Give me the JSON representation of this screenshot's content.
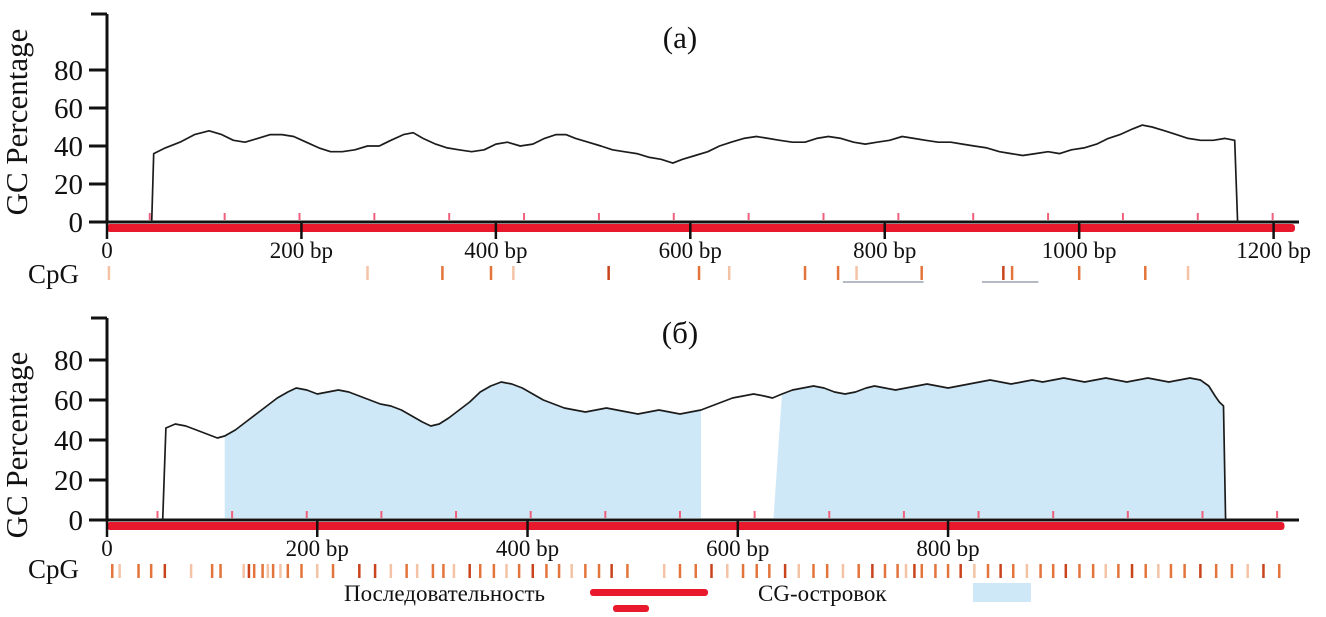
{
  "chart_data": [
    {
      "type": "line",
      "title": "(а)",
      "ylabel": "GC Percentage",
      "xlabel_unit": "bp",
      "ylim": [
        0,
        100
      ],
      "yticks": [
        0,
        20,
        40,
        60,
        80
      ],
      "xlim": [
        0,
        1222
      ],
      "xticks": [
        {
          "bp": 0,
          "label": "0"
        },
        {
          "bp": 200,
          "label": "200 bp"
        },
        {
          "bp": 400,
          "label": "400 bp"
        },
        {
          "bp": 600,
          "label": "600 bp"
        },
        {
          "bp": 800,
          "label": "800 bp"
        },
        {
          "bp": 1000,
          "label": "1000 bp"
        },
        {
          "bp": 1200,
          "label": "1200 bp"
        }
      ],
      "series": [
        {
          "name": "GC percentage",
          "points": [
            [
              46,
              0
            ],
            [
              48,
              36
            ],
            [
              60,
              39
            ],
            [
              75,
              42
            ],
            [
              90,
              46
            ],
            [
              105,
              48
            ],
            [
              118,
              46
            ],
            [
              130,
              43
            ],
            [
              142,
              42
            ],
            [
              155,
              44
            ],
            [
              168,
              46
            ],
            [
              180,
              46
            ],
            [
              192,
              45
            ],
            [
              205,
              42
            ],
            [
              218,
              39
            ],
            [
              230,
              37
            ],
            [
              242,
              37
            ],
            [
              255,
              38
            ],
            [
              268,
              40
            ],
            [
              280,
              40
            ],
            [
              292,
              43
            ],
            [
              305,
              46
            ],
            [
              315,
              47
            ],
            [
              325,
              44
            ],
            [
              338,
              41
            ],
            [
              350,
              39
            ],
            [
              362,
              38
            ],
            [
              375,
              37
            ],
            [
              388,
              38
            ],
            [
              400,
              41
            ],
            [
              412,
              42
            ],
            [
              425,
              40
            ],
            [
              438,
              41
            ],
            [
              450,
              44
            ],
            [
              462,
              46
            ],
            [
              472,
              46
            ],
            [
              482,
              44
            ],
            [
              495,
              42
            ],
            [
              508,
              40
            ],
            [
              520,
              38
            ],
            [
              532,
              37
            ],
            [
              545,
              36
            ],
            [
              558,
              34
            ],
            [
              570,
              33
            ],
            [
              582,
              31
            ],
            [
              592,
              33
            ],
            [
              605,
              35
            ],
            [
              618,
              37
            ],
            [
              630,
              40
            ],
            [
              642,
              42
            ],
            [
              655,
              44
            ],
            [
              668,
              45
            ],
            [
              680,
              44
            ],
            [
              692,
              43
            ],
            [
              705,
              42
            ],
            [
              718,
              42
            ],
            [
              730,
              44
            ],
            [
              742,
              45
            ],
            [
              755,
              44
            ],
            [
              768,
              42
            ],
            [
              780,
              41
            ],
            [
              792,
              42
            ],
            [
              805,
              43
            ],
            [
              818,
              45
            ],
            [
              830,
              44
            ],
            [
              842,
              43
            ],
            [
              855,
              42
            ],
            [
              868,
              42
            ],
            [
              880,
              41
            ],
            [
              892,
              40
            ],
            [
              905,
              39
            ],
            [
              918,
              37
            ],
            [
              930,
              36
            ],
            [
              942,
              35
            ],
            [
              955,
              36
            ],
            [
              968,
              37
            ],
            [
              980,
              36
            ],
            [
              992,
              38
            ],
            [
              1005,
              39
            ],
            [
              1018,
              41
            ],
            [
              1030,
              44
            ],
            [
              1042,
              46
            ],
            [
              1055,
              49
            ],
            [
              1065,
              51
            ],
            [
              1075,
              50
            ],
            [
              1088,
              48
            ],
            [
              1100,
              46
            ],
            [
              1112,
              44
            ],
            [
              1125,
              43
            ],
            [
              1138,
              43
            ],
            [
              1150,
              44
            ],
            [
              1160,
              43
            ],
            [
              1163,
              0
            ]
          ]
        }
      ],
      "sequence_bar_bp": [
        0,
        1222
      ],
      "islands_bp": [],
      "minor_ticks_bp": [
        44,
        121,
        198,
        275,
        352,
        429,
        506,
        583,
        660,
        737,
        814,
        891,
        968,
        1045,
        1122,
        1199
      ],
      "cpg_label": "CpG",
      "cpg_tick_bp": [
        2,
        268,
        345,
        395,
        418,
        516,
        609,
        640,
        718,
        752,
        771,
        838,
        922,
        931,
        1000,
        1068,
        1112
      ],
      "cpg_tick_tones": "llmmldmlmmlmdmmml",
      "cpg_underlines_bp": [
        [
          757,
          840
        ],
        [
          900,
          958
        ]
      ]
    },
    {
      "type": "line",
      "title": "(б)",
      "ylabel": "GC Percentage",
      "xlabel_unit": "bp",
      "ylim": [
        0,
        100
      ],
      "yticks": [
        0,
        20,
        40,
        60,
        80
      ],
      "xlim": [
        0,
        1130
      ],
      "xticks": [
        {
          "bp": 0,
          "label": "0"
        },
        {
          "bp": 200,
          "label": "200 bp"
        },
        {
          "bp": 400,
          "label": "400 bp"
        },
        {
          "bp": 600,
          "label": "600 bp"
        },
        {
          "bp": 800,
          "label": "800 bp"
        }
      ],
      "series": [
        {
          "name": "GC percentage",
          "points": [
            [
              53,
              0
            ],
            [
              56,
              46
            ],
            [
              65,
              48
            ],
            [
              75,
              47
            ],
            [
              85,
              45
            ],
            [
              95,
              43
            ],
            [
              105,
              41
            ],
            [
              112,
              42
            ],
            [
              122,
              45
            ],
            [
              132,
              49
            ],
            [
              142,
              53
            ],
            [
              152,
              57
            ],
            [
              162,
              61
            ],
            [
              172,
              64
            ],
            [
              180,
              66
            ],
            [
              190,
              65
            ],
            [
              200,
              63
            ],
            [
              210,
              64
            ],
            [
              220,
              65
            ],
            [
              230,
              64
            ],
            [
              240,
              62
            ],
            [
              250,
              60
            ],
            [
              260,
              58
            ],
            [
              270,
              57
            ],
            [
              280,
              55
            ],
            [
              290,
              52
            ],
            [
              300,
              49
            ],
            [
              308,
              47
            ],
            [
              316,
              48
            ],
            [
              325,
              51
            ],
            [
              335,
              55
            ],
            [
              345,
              59
            ],
            [
              355,
              64
            ],
            [
              365,
              67
            ],
            [
              375,
              69
            ],
            [
              385,
              68
            ],
            [
              395,
              66
            ],
            [
              405,
              63
            ],
            [
              415,
              60
            ],
            [
              425,
              58
            ],
            [
              435,
              56
            ],
            [
              445,
              55
            ],
            [
              455,
              54
            ],
            [
              465,
              55
            ],
            [
              475,
              56
            ],
            [
              485,
              55
            ],
            [
              495,
              54
            ],
            [
              505,
              53
            ],
            [
              515,
              54
            ],
            [
              525,
              55
            ],
            [
              535,
              54
            ],
            [
              545,
              53
            ],
            [
              555,
              54
            ],
            [
              565,
              55
            ],
            [
              575,
              57
            ],
            [
              585,
              59
            ],
            [
              595,
              61
            ],
            [
              605,
              62
            ],
            [
              615,
              63
            ],
            [
              625,
              62
            ],
            [
              633,
              61
            ],
            [
              642,
              63
            ],
            [
              652,
              65
            ],
            [
              662,
              66
            ],
            [
              672,
              67
            ],
            [
              682,
              66
            ],
            [
              692,
              64
            ],
            [
              702,
              63
            ],
            [
              712,
              64
            ],
            [
              722,
              66
            ],
            [
              730,
              67
            ],
            [
              740,
              66
            ],
            [
              750,
              65
            ],
            [
              760,
              66
            ],
            [
              770,
              67
            ],
            [
              780,
              68
            ],
            [
              790,
              67
            ],
            [
              800,
              66
            ],
            [
              810,
              67
            ],
            [
              820,
              68
            ],
            [
              830,
              69
            ],
            [
              840,
              70
            ],
            [
              850,
              69
            ],
            [
              860,
              68
            ],
            [
              870,
              69
            ],
            [
              880,
              70
            ],
            [
              890,
              69
            ],
            [
              900,
              70
            ],
            [
              910,
              71
            ],
            [
              920,
              70
            ],
            [
              930,
              69
            ],
            [
              940,
              70
            ],
            [
              950,
              71
            ],
            [
              960,
              70
            ],
            [
              970,
              69
            ],
            [
              980,
              70
            ],
            [
              990,
              71
            ],
            [
              1000,
              70
            ],
            [
              1010,
              69
            ],
            [
              1020,
              70
            ],
            [
              1030,
              71
            ],
            [
              1040,
              70
            ],
            [
              1048,
              67
            ],
            [
              1054,
              62
            ],
            [
              1058,
              59
            ],
            [
              1062,
              57
            ],
            [
              1064,
              0
            ]
          ]
        }
      ],
      "sequence_bar_bp": [
        0,
        1120
      ],
      "islands_bp": [
        [
          112,
          565
        ],
        [
          634,
          1064
        ]
      ],
      "minor_ticks_bp": [
        48,
        119,
        190,
        261,
        332,
        403,
        474,
        545,
        616,
        687,
        758,
        829,
        900,
        971,
        1042,
        1113
      ],
      "cpg_label": "CpG",
      "cpg_tick_bp": [
        5,
        12,
        30,
        42,
        55,
        80,
        100,
        108,
        130,
        135,
        140,
        148,
        153,
        158,
        165,
        172,
        185,
        200,
        215,
        240,
        255,
        270,
        285,
        295,
        310,
        320,
        330,
        345,
        355,
        368,
        380,
        392,
        405,
        418,
        430,
        442,
        455,
        468,
        480,
        495,
        530,
        545,
        560,
        575,
        590,
        605,
        618,
        630,
        645,
        658,
        672,
        685,
        700,
        715,
        728,
        740,
        752,
        760,
        768,
        775,
        788,
        800,
        812,
        825,
        838,
        850,
        862,
        875,
        888,
        900,
        912,
        925,
        938,
        950,
        962,
        975,
        988,
        1000,
        1012,
        1025,
        1040,
        1055,
        1070,
        1085,
        1100,
        1115
      ],
      "cpg_tick_tones": "mlmmdlmmldmmlmlmmlmddlmlmmldmmlmdmmlmmdmlmmdlmmmdlmmlmdmmldmmmdlmdmlmmdmmlmdmlmmdmmldm",
      "cpg_underlines_bp": []
    }
  ],
  "legend": {
    "sequence_label": "Последовательность",
    "island_label": "CG-островок"
  },
  "colors": {
    "sequence": "#e8192c",
    "island": "#cfe8f7",
    "gc_line": "#1c1c1c",
    "minor_tick": "#f0607a",
    "cpg_light": "#f4c3a6",
    "cpg_mid": "#e2743c",
    "cpg_dark": "#c9431c",
    "axis": "#111111",
    "underline": "#9aa4b0"
  }
}
